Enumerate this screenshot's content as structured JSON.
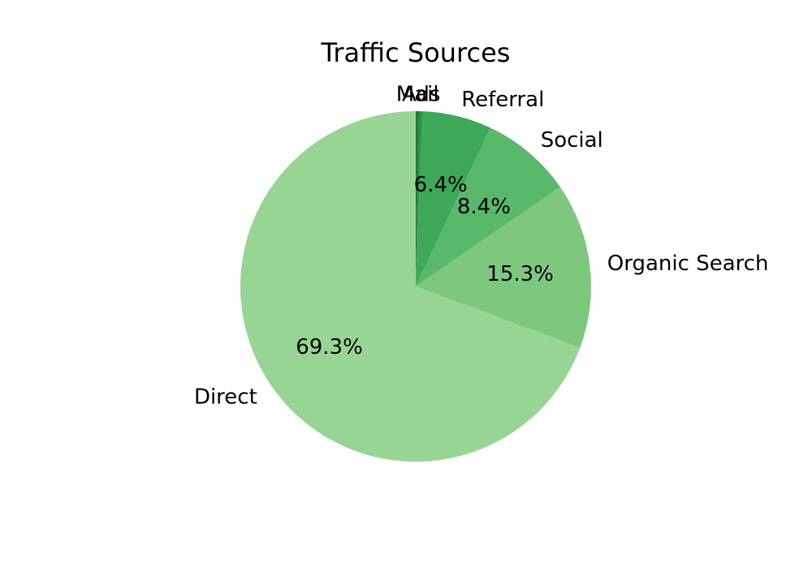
{
  "chart_data": {
    "type": "pie",
    "title": "Traffic Sources",
    "start_angle_deg": 90,
    "direction": "clockwise",
    "slices": [
      {
        "label": "Mail",
        "value": 0.3,
        "pct_label": "",
        "color": "#1e7b3c"
      },
      {
        "label": "Ads",
        "value": 0.3,
        "pct_label": "",
        "color": "#2a9148"
      },
      {
        "label": "Referral",
        "value": 6.4,
        "pct_label": "6.4%",
        "color": "#3ea858"
      },
      {
        "label": "Social",
        "value": 8.4,
        "pct_label": "8.4%",
        "color": "#5ab86b"
      },
      {
        "label": "Organic Search",
        "value": 15.3,
        "pct_label": "15.3%",
        "color": "#7dc87e"
      },
      {
        "label": "Direct",
        "value": 69.3,
        "pct_label": "69.3%",
        "color": "#98d594"
      }
    ]
  }
}
